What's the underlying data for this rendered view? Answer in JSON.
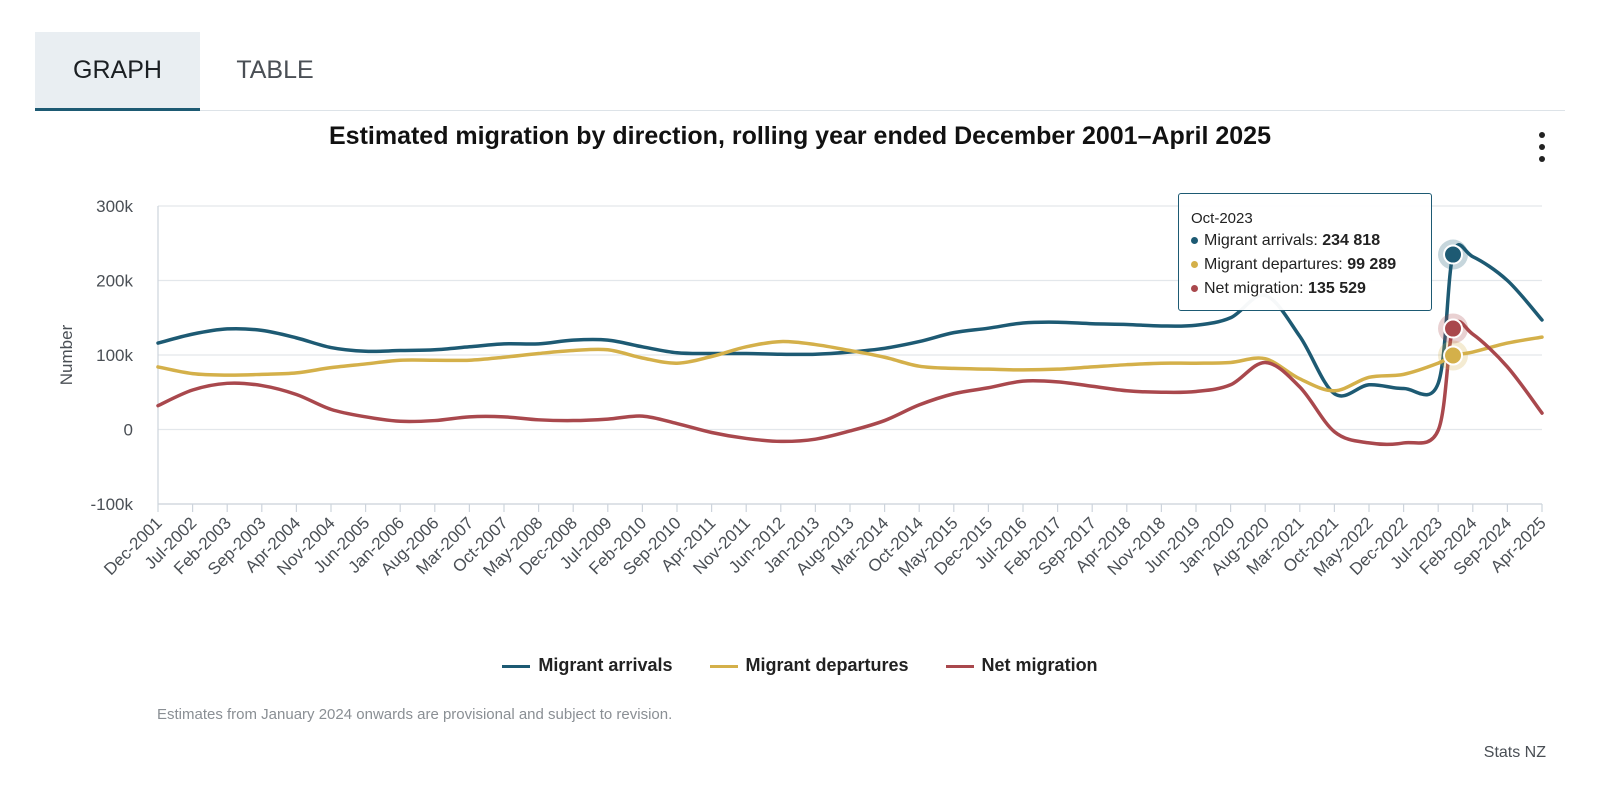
{
  "tabs": [
    {
      "label": "GRAPH",
      "active": true
    },
    {
      "label": "TABLE",
      "active": false
    }
  ],
  "menu_icon": "more-vertical-icon",
  "colors": {
    "arrivals": "#1d5a73",
    "departures": "#d4b04a",
    "net": "#a9484d",
    "grid": "#e3e7eb",
    "axis": "#cdd4dc"
  },
  "tooltip": {
    "date": "Oct-2023",
    "rows": [
      {
        "label": "Migrant arrivals: ",
        "value": "234 818",
        "color": "#1d5a73"
      },
      {
        "label": "Migrant departures: ",
        "value": "99 289",
        "color": "#d4b04a"
      },
      {
        "label": "Net migration: ",
        "value": "135 529",
        "color": "#a9484d"
      }
    ]
  },
  "note": "Estimates from January 2024 onwards are provisional and subject to revision.",
  "credit": "Stats NZ",
  "chart_data": {
    "type": "line",
    "title": "Estimated migration by direction, rolling year ended December 2001–April 2025",
    "xlabel": "",
    "ylabel": "Number",
    "ylim": [
      -100000,
      300000
    ],
    "yticks": [
      -100000,
      0,
      100000,
      200000,
      300000
    ],
    "ytick_labels": [
      "-100k",
      "0",
      "100k",
      "200k",
      "300k"
    ],
    "x_start": "Dec-2001",
    "x_end": "Apr-2025",
    "xtick_labels": [
      "Dec-2001",
      "Jul-2002",
      "Feb-2003",
      "Sep-2003",
      "Apr-2004",
      "Nov-2004",
      "Jun-2005",
      "Jan-2006",
      "Aug-2006",
      "Mar-2007",
      "Oct-2007",
      "May-2008",
      "Dec-2008",
      "Jul-2009",
      "Feb-2010",
      "Sep-2010",
      "Apr-2011",
      "Nov-2011",
      "Jun-2012",
      "Jan-2013",
      "Aug-2013",
      "Mar-2014",
      "Oct-2014",
      "May-2015",
      "Dec-2015",
      "Jul-2016",
      "Feb-2017",
      "Sep-2017",
      "Apr-2018",
      "Nov-2018",
      "Jun-2019",
      "Jan-2020",
      "Aug-2020",
      "Mar-2021",
      "Oct-2021",
      "May-2022",
      "Dec-2022",
      "Jul-2023",
      "Feb-2024",
      "Sep-2024",
      "Apr-2025"
    ],
    "grid": true,
    "legend_position": "bottom",
    "series": [
      {
        "name": "Migrant arrivals",
        "color": "#1d5a73",
        "points": [
          [
            "Dec-2001",
            116000
          ],
          [
            "Jul-2002",
            128000
          ],
          [
            "Feb-2003",
            135000
          ],
          [
            "Sep-2003",
            133000
          ],
          [
            "Apr-2004",
            123000
          ],
          [
            "Nov-2004",
            110000
          ],
          [
            "Jun-2005",
            105000
          ],
          [
            "Jan-2006",
            106000
          ],
          [
            "Aug-2006",
            107000
          ],
          [
            "Mar-2007",
            111000
          ],
          [
            "Oct-2007",
            115000
          ],
          [
            "May-2008",
            115000
          ],
          [
            "Dec-2008",
            120000
          ],
          [
            "Jul-2009",
            120000
          ],
          [
            "Feb-2010",
            111000
          ],
          [
            "Sep-2010",
            103000
          ],
          [
            "Apr-2011",
            102000
          ],
          [
            "Nov-2011",
            102000
          ],
          [
            "Jun-2012",
            101000
          ],
          [
            "Jan-2013",
            101000
          ],
          [
            "Aug-2013",
            104000
          ],
          [
            "Mar-2014",
            109000
          ],
          [
            "Oct-2014",
            118000
          ],
          [
            "May-2015",
            130000
          ],
          [
            "Dec-2015",
            136000
          ],
          [
            "Jul-2016",
            143000
          ],
          [
            "Feb-2017",
            144000
          ],
          [
            "Sep-2017",
            142000
          ],
          [
            "Apr-2018",
            141000
          ],
          [
            "Nov-2018",
            139000
          ],
          [
            "Jun-2019",
            140000
          ],
          [
            "Jan-2020",
            150000
          ],
          [
            "Aug-2020",
            180000
          ],
          [
            "Mar-2021",
            125000
          ],
          [
            "Oct-2021",
            48000
          ],
          [
            "May-2022",
            60000
          ],
          [
            "Dec-2022",
            55000
          ],
          [
            "Jul-2023",
            62000
          ],
          [
            "Oct-2023",
            234818
          ],
          [
            "Feb-2024",
            232000
          ],
          [
            "Sep-2024",
            200000
          ],
          [
            "Apr-2025",
            147000
          ]
        ]
      },
      {
        "name": "Migrant departures",
        "color": "#d4b04a",
        "points": [
          [
            "Dec-2001",
            84000
          ],
          [
            "Jul-2002",
            75000
          ],
          [
            "Feb-2003",
            73000
          ],
          [
            "Sep-2003",
            74000
          ],
          [
            "Apr-2004",
            76000
          ],
          [
            "Nov-2004",
            83000
          ],
          [
            "Jun-2005",
            88000
          ],
          [
            "Jan-2006",
            93000
          ],
          [
            "Aug-2006",
            93000
          ],
          [
            "Mar-2007",
            93000
          ],
          [
            "Oct-2007",
            97000
          ],
          [
            "May-2008",
            102000
          ],
          [
            "Dec-2008",
            106000
          ],
          [
            "Jul-2009",
            107000
          ],
          [
            "Feb-2010",
            96000
          ],
          [
            "Sep-2010",
            89000
          ],
          [
            "Apr-2011",
            98000
          ],
          [
            "Nov-2011",
            111000
          ],
          [
            "Jun-2012",
            118000
          ],
          [
            "Jan-2013",
            114000
          ],
          [
            "Aug-2013",
            106000
          ],
          [
            "Mar-2014",
            97000
          ],
          [
            "Oct-2014",
            85000
          ],
          [
            "May-2015",
            82000
          ],
          [
            "Dec-2015",
            81000
          ],
          [
            "Jul-2016",
            80000
          ],
          [
            "Feb-2017",
            81000
          ],
          [
            "Sep-2017",
            84000
          ],
          [
            "Apr-2018",
            87000
          ],
          [
            "Nov-2018",
            89000
          ],
          [
            "Jun-2019",
            89000
          ],
          [
            "Jan-2020",
            90000
          ],
          [
            "Aug-2020",
            95000
          ],
          [
            "Mar-2021",
            68000
          ],
          [
            "Oct-2021",
            52000
          ],
          [
            "May-2022",
            70000
          ],
          [
            "Dec-2022",
            74000
          ],
          [
            "Jul-2023",
            89000
          ],
          [
            "Oct-2023",
            99289
          ],
          [
            "Feb-2024",
            104000
          ],
          [
            "Sep-2024",
            116000
          ],
          [
            "Apr-2025",
            124000
          ]
        ]
      },
      {
        "name": "Net migration",
        "color": "#a9484d",
        "points": [
          [
            "Dec-2001",
            32000
          ],
          [
            "Jul-2002",
            53000
          ],
          [
            "Feb-2003",
            62000
          ],
          [
            "Sep-2003",
            59000
          ],
          [
            "Apr-2004",
            47000
          ],
          [
            "Nov-2004",
            27000
          ],
          [
            "Jun-2005",
            17000
          ],
          [
            "Jan-2006",
            11000
          ],
          [
            "Aug-2006",
            12000
          ],
          [
            "Mar-2007",
            17000
          ],
          [
            "Oct-2007",
            17000
          ],
          [
            "May-2008",
            13000
          ],
          [
            "Dec-2008",
            12000
          ],
          [
            "Jul-2009",
            14000
          ],
          [
            "Feb-2010",
            18000
          ],
          [
            "Sep-2010",
            8000
          ],
          [
            "Apr-2011",
            -4000
          ],
          [
            "Nov-2011",
            -12000
          ],
          [
            "Jun-2012",
            -16000
          ],
          [
            "Jan-2013",
            -13000
          ],
          [
            "Aug-2013",
            -2000
          ],
          [
            "Mar-2014",
            12000
          ],
          [
            "Oct-2014",
            33000
          ],
          [
            "May-2015",
            48000
          ],
          [
            "Dec-2015",
            56000
          ],
          [
            "Jul-2016",
            65000
          ],
          [
            "Feb-2017",
            64000
          ],
          [
            "Sep-2017",
            58000
          ],
          [
            "Apr-2018",
            52000
          ],
          [
            "Nov-2018",
            50000
          ],
          [
            "Jun-2019",
            51000
          ],
          [
            "Jan-2020",
            60000
          ],
          [
            "Aug-2020",
            90000
          ],
          [
            "Mar-2021",
            57000
          ],
          [
            "Oct-2021",
            -3000
          ],
          [
            "May-2022",
            -18000
          ],
          [
            "Dec-2022",
            -18000
          ],
          [
            "Jul-2023",
            -1000
          ],
          [
            "Oct-2023",
            135529
          ],
          [
            "Feb-2024",
            128000
          ],
          [
            "Sep-2024",
            84000
          ],
          [
            "Apr-2025",
            22000
          ]
        ]
      }
    ],
    "highlight": {
      "x": "Oct-2023"
    }
  }
}
